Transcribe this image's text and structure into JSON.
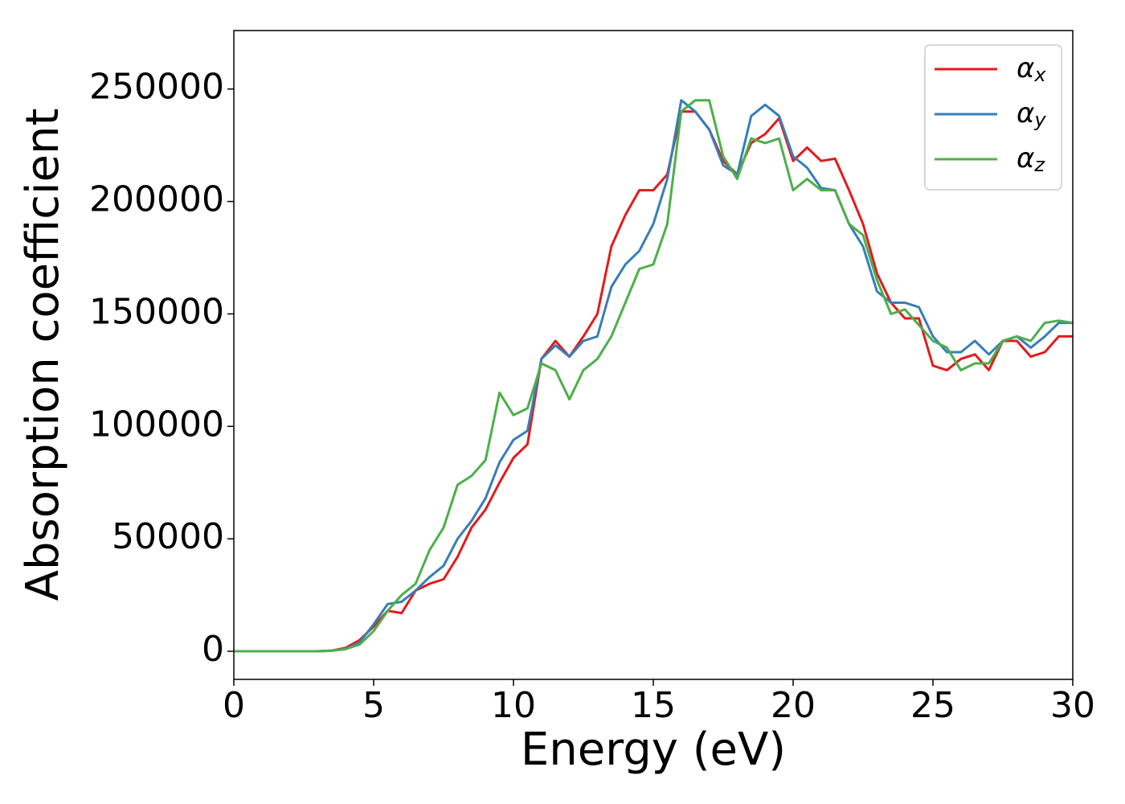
{
  "chart_data": {
    "type": "line",
    "xlabel": "Energy (eV)",
    "ylabel": "Absorption coefficient",
    "x": [
      0,
      0.5,
      1,
      1.5,
      2,
      2.5,
      3,
      3.5,
      4,
      4.5,
      5,
      5.5,
      6,
      6.5,
      7,
      7.5,
      8,
      8.5,
      9,
      9.5,
      10,
      10.5,
      11,
      11.5,
      12,
      12.5,
      13,
      13.5,
      14,
      14.5,
      15,
      15.5,
      16,
      16.5,
      17,
      17.5,
      18,
      18.5,
      19,
      19.5,
      20,
      20.5,
      21,
      21.5,
      22,
      22.5,
      23,
      23.5,
      24,
      24.5,
      25,
      25.5,
      26,
      26.5,
      27,
      27.5,
      28,
      28.5,
      29,
      29.5,
      30
    ],
    "series": [
      {
        "name": "αx",
        "color": "#e41a1c",
        "values": [
          0,
          0,
          0,
          0,
          0,
          0,
          0,
          300,
          1500,
          5000,
          11000,
          18000,
          17000,
          27000,
          30000,
          32000,
          42000,
          55000,
          63000,
          75000,
          86000,
          92000,
          130000,
          138000,
          131000,
          140000,
          150000,
          180000,
          194000,
          205000,
          205000,
          212000,
          240000,
          240000,
          232000,
          218000,
          212000,
          226000,
          230000,
          237000,
          218000,
          224000,
          218000,
          219000,
          205000,
          190000,
          168000,
          155000,
          148000,
          148000,
          127000,
          125000,
          130000,
          132000,
          125000,
          138000,
          138000,
          131000,
          133000,
          140000,
          140000
        ]
      },
      {
        "name": "αy",
        "color": "#377eb8",
        "values": [
          0,
          0,
          0,
          0,
          0,
          0,
          0,
          300,
          1000,
          4000,
          12000,
          21000,
          22000,
          27000,
          33000,
          38000,
          50000,
          58000,
          68000,
          84000,
          94000,
          98000,
          130000,
          136000,
          131000,
          138000,
          140000,
          162000,
          172000,
          178000,
          190000,
          210000,
          245000,
          240000,
          232000,
          216000,
          212000,
          238000,
          243000,
          238000,
          220000,
          215000,
          206000,
          205000,
          190000,
          180000,
          160000,
          155000,
          155000,
          153000,
          140000,
          133000,
          133000,
          138000,
          132000,
          138000,
          140000,
          135000,
          140000,
          146000,
          146000
        ]
      },
      {
        "name": "αz",
        "color": "#4daf4a",
        "values": [
          0,
          0,
          0,
          0,
          0,
          0,
          0,
          300,
          1000,
          3000,
          9000,
          18000,
          25000,
          30000,
          45000,
          55000,
          74000,
          78000,
          85000,
          115000,
          105000,
          108000,
          128000,
          125000,
          112000,
          125000,
          130000,
          140000,
          155000,
          170000,
          172000,
          190000,
          240000,
          245000,
          245000,
          220000,
          210000,
          228000,
          226000,
          228000,
          205000,
          210000,
          205000,
          205000,
          190000,
          185000,
          165000,
          150000,
          152000,
          145000,
          138000,
          135000,
          125000,
          128000,
          128000,
          138000,
          140000,
          138000,
          146000,
          147000,
          146000
        ]
      }
    ],
    "xlim": [
      0,
      30
    ],
    "xticks": [
      0,
      5,
      10,
      15,
      20,
      25,
      30
    ],
    "ylim": [
      -12500,
      276000
    ],
    "yticks": [
      0,
      50000,
      100000,
      150000,
      200000,
      250000
    ],
    "grid": false,
    "legend": "upper right"
  }
}
